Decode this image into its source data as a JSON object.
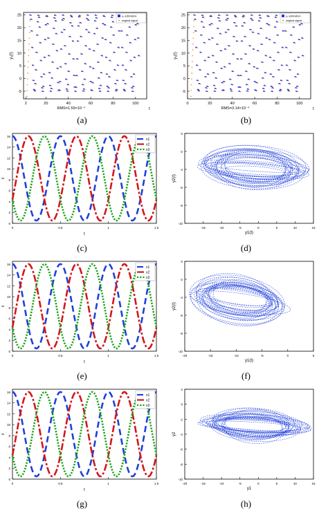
{
  "colors": {
    "blue": "#1f3fd9",
    "red": "#d4161a",
    "green": "#16a316",
    "orange": "#f08a1c",
    "axis": "#000000"
  },
  "panels": [
    {
      "caption": "(a)",
      "chart_data": {
        "type": "scatter",
        "xlabel": "t",
        "ylabel": "y₁(t)",
        "xlim": [
          0,
          110
        ],
        "ylim": [
          -8,
          26
        ],
        "xticks": [
          2,
          20,
          40,
          60,
          80,
          100
        ],
        "yticks": [
          -5,
          0,
          5,
          10,
          15,
          20,
          25
        ],
        "annotation": "RMS=1.59×10⁻⁴",
        "legend": [
          "y₁ estimation",
          "original signal"
        ],
        "legend_position": "top-right",
        "series": [
          {
            "name": "y₁ estimation",
            "pattern": "oscillation",
            "t_start": 6,
            "t_end": 103,
            "period": 7.3,
            "min": -5,
            "max": 25
          },
          {
            "name": "original signal",
            "pattern": "transient",
            "t_start": 3,
            "t_end": 6,
            "min": -7,
            "max": 25
          }
        ]
      }
    },
    {
      "caption": "(b)",
      "chart_data": {
        "type": "scatter",
        "xlabel": "t",
        "ylabel": "y₁(t)",
        "xlim": [
          0,
          110
        ],
        "ylim": [
          -8,
          26
        ],
        "xticks": [
          0,
          20,
          40,
          60,
          80,
          100
        ],
        "yticks": [
          -5,
          0,
          5,
          10,
          15,
          20,
          25
        ],
        "annotation": "RMS=3.14×10⁻⁴",
        "legend": [
          "y₁ estimation",
          "original signal"
        ],
        "legend_position": "top-right",
        "series": [
          {
            "name": "y₁ estimation",
            "pattern": "oscillation",
            "t_start": 6,
            "t_end": 103,
            "period": 7.3,
            "min": -5,
            "max": 25
          },
          {
            "name": "original signal",
            "pattern": "transient",
            "t_start": 3,
            "t_end": 6,
            "min": -7,
            "max": 25
          }
        ]
      }
    },
    {
      "caption": "(c)",
      "chart_data": {
        "type": "line",
        "xlabel": "t",
        "ylabel": "x",
        "xlim": [
          0,
          1.5
        ],
        "ylim": [
          0,
          16.5
        ],
        "xticks": [
          0,
          0.5,
          1,
          1.5
        ],
        "yticks": [
          0,
          2,
          4,
          6,
          8,
          10,
          12,
          14,
          16
        ],
        "legend_position": "top-right",
        "series": [
          {
            "name": "x1",
            "phase": 0.0,
            "period": 0.5,
            "min": 0.5,
            "max": 16
          },
          {
            "name": "x2",
            "phase": 0.333,
            "period": 0.5,
            "min": 0.5,
            "max": 16
          },
          {
            "name": "x3",
            "phase": 0.667,
            "period": 0.5,
            "min": 0.5,
            "max": 16
          }
        ]
      }
    },
    {
      "caption": "(d)",
      "chart_data": {
        "type": "scatter",
        "pattern": "attractor",
        "xlabel": "y1(t)",
        "ylabel": "y2(t)",
        "xlim": [
          -20,
          15
        ],
        "ylim": [
          -10,
          0
        ],
        "xticks": [
          -15,
          -10,
          -5,
          0,
          5,
          10,
          15
        ],
        "yticks": [
          -10,
          -8,
          -6,
          -4,
          -2,
          0
        ],
        "ellipse": {
          "cx": -1,
          "cy": -3.8,
          "rx": 15,
          "ry": 1.3,
          "rotation": -12
        }
      }
    },
    {
      "caption": "(e)",
      "chart_data": {
        "type": "line",
        "xlabel": "t",
        "ylabel": "x",
        "xlim": [
          0,
          1.5
        ],
        "ylim": [
          0,
          16.5
        ],
        "xticks": [
          0,
          0.5,
          1,
          1.5
        ],
        "yticks": [
          0,
          2,
          4,
          6,
          8,
          10,
          12,
          14,
          16
        ],
        "legend_position": "top-right",
        "series": [
          {
            "name": "x1",
            "phase": 0.0,
            "period": 0.5,
            "min": 0.5,
            "max": 16
          },
          {
            "name": "x2",
            "phase": 0.333,
            "period": 0.5,
            "min": 0.5,
            "max": 16
          },
          {
            "name": "x3",
            "phase": 0.667,
            "period": 0.5,
            "min": 0.5,
            "max": 16
          }
        ]
      }
    },
    {
      "caption": "(f)",
      "chart_data": {
        "type": "scatter",
        "pattern": "attractor",
        "xlabel": "y1(t)",
        "ylabel": "y2(t)",
        "xlim": [
          -20,
          5
        ],
        "ylim": [
          -10,
          0
        ],
        "xticks": [
          -20,
          -15,
          -10,
          -5,
          0,
          5
        ],
        "yticks": [
          -10,
          -8,
          -6,
          -4,
          -2,
          0
        ],
        "ellipse": {
          "cx": -9.5,
          "cy": -4.2,
          "rx": 10,
          "ry": 1.6,
          "rotation": -18
        }
      }
    },
    {
      "caption": "(g)",
      "chart_data": {
        "type": "line",
        "xlabel": "t",
        "ylabel": "x",
        "xlim": [
          0,
          1.5
        ],
        "ylim": [
          0,
          16.5
        ],
        "xticks": [
          0,
          0.5,
          1,
          1.5
        ],
        "yticks": [
          0,
          2,
          4,
          6,
          8,
          10,
          12,
          14,
          16
        ],
        "legend_position": "top-right",
        "series": [
          {
            "name": "x1",
            "phase": 0.0,
            "period": 0.5,
            "min": 0.5,
            "max": 16
          },
          {
            "name": "x2",
            "phase": 0.333,
            "period": 0.5,
            "min": 0.5,
            "max": 16
          },
          {
            "name": "x3",
            "phase": 0.667,
            "period": 0.5,
            "min": 0.5,
            "max": 16
          }
        ]
      }
    },
    {
      "caption": "(h)",
      "chart_data": {
        "type": "scatter",
        "pattern": "attractor",
        "xlabel": "y1",
        "ylabel": "y2",
        "xlim": [
          -20,
          15
        ],
        "ylim": [
          -10,
          2
        ],
        "xticks": [
          -20,
          -15,
          -10,
          -5,
          0,
          5,
          10,
          15
        ],
        "yticks": [
          -10,
          -8,
          -6,
          -4,
          -2,
          0,
          2
        ],
        "ellipse": {
          "cx": -1,
          "cy": -2.7,
          "rx": 15,
          "ry": 1.3,
          "rotation": -12
        }
      }
    }
  ]
}
